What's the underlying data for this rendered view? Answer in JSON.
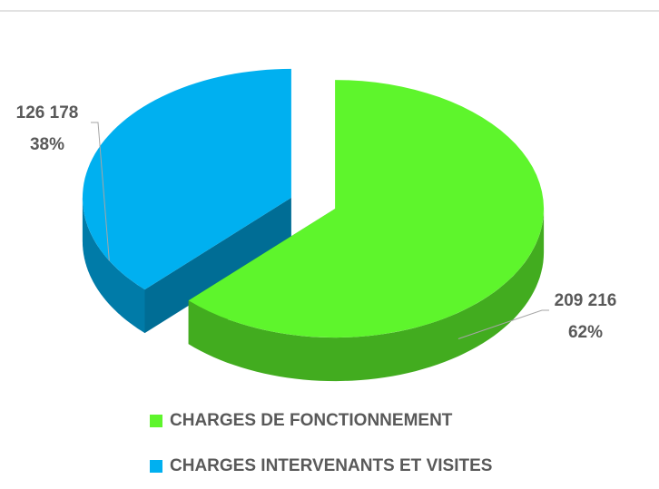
{
  "chart_data": {
    "type": "pie",
    "categories": [
      "CHARGES DE FONCTIONNEMENT",
      "CHARGES INTERVENANTS ET VISITES"
    ],
    "values": [
      209216,
      126178
    ],
    "value_labels": [
      "209 216",
      "126 178"
    ],
    "percent_labels": [
      "62%",
      "38%"
    ],
    "colors": [
      "#5ef52c",
      "#00b0f0"
    ],
    "three_d": true,
    "exploded": true
  }
}
